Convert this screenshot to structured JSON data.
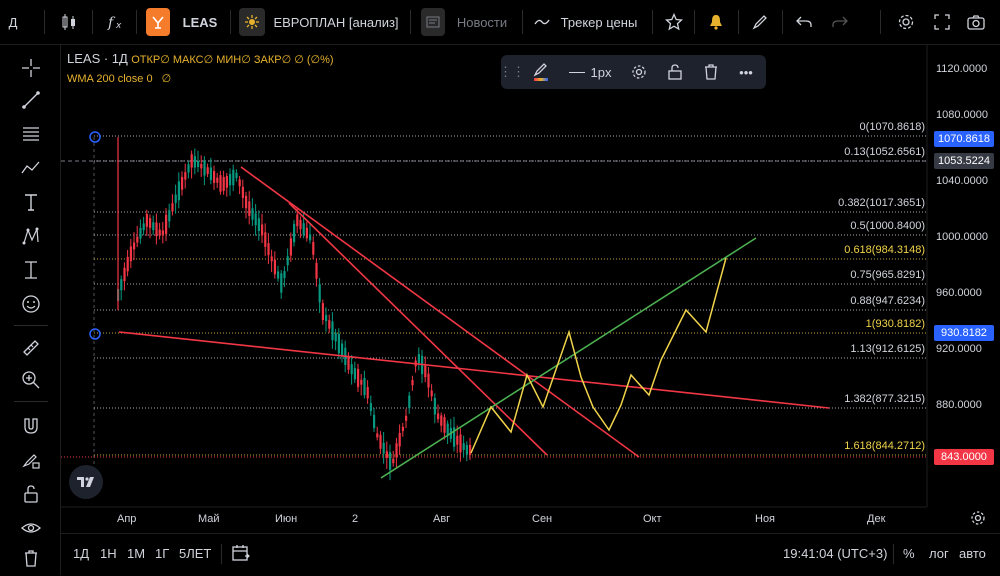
{
  "toolbar": {
    "interval_label": "Д",
    "symbol": "LEAS",
    "compare_label": "ЕВРОПЛАН [анализ]",
    "news_label": "Новости",
    "tracker_label": "Трекер цены"
  },
  "legend": {
    "title": "LEAS · 1Д",
    "ohlc": "ОТКР∅ МАКС∅ МИН∅ ЗАКР∅ ∅ (∅%)",
    "indicator": "WMA 200 close 0",
    "indicator_value": "∅"
  },
  "float_toolbar": {
    "width_label": "1px"
  },
  "price_axis": {
    "ticks": [
      {
        "label": "1120.0000",
        "y": 24
      },
      {
        "label": "1080.0000",
        "y": 70
      },
      {
        "label": "1040.0000",
        "y": 136
      },
      {
        "label": "1000.0000",
        "y": 192
      },
      {
        "label": "960.0000",
        "y": 248
      },
      {
        "label": "920.0000",
        "y": 304
      },
      {
        "label": "880.0000",
        "y": 360
      }
    ],
    "tags": [
      {
        "label": "1070.8618",
        "y": 94,
        "color": "#2962ff"
      },
      {
        "label": "1053.5224",
        "y": 116,
        "color": "#363a45"
      },
      {
        "label": "930.8182",
        "y": 288,
        "color": "#2962ff"
      },
      {
        "label": "843.0000",
        "y": 412,
        "color": "#f23645"
      }
    ]
  },
  "fib_levels": [
    {
      "label": "0(1070.8618)",
      "y": 91,
      "color": "#d1d4dc"
    },
    {
      "label": "0.13(1052.6561)",
      "y": 116,
      "color": "#d1d4dc"
    },
    {
      "label": "0.382(1017.3651)",
      "y": 167,
      "color": "#d1d4dc"
    },
    {
      "label": "0.5(1000.8400)",
      "y": 190,
      "color": "#d1d4dc"
    },
    {
      "label": "0.618(984.3148)",
      "y": 214,
      "color": "#f0d34a"
    },
    {
      "label": "0.75(965.8291)",
      "y": 239,
      "color": "#d1d4dc"
    },
    {
      "label": "0.88(947.6234)",
      "y": 265,
      "color": "#d1d4dc"
    },
    {
      "label": "1(930.8182)",
      "y": 288,
      "color": "#f0d34a"
    },
    {
      "label": "1.13(912.6125)",
      "y": 313,
      "color": "#d1d4dc"
    },
    {
      "label": "1.382(877.3215)",
      "y": 363,
      "color": "#d1d4dc"
    },
    {
      "label": "1.618(844.2712)",
      "y": 410,
      "color": "#f0d34a"
    }
  ],
  "time_axis": [
    "Апр",
    "Май",
    "Июн",
    "2",
    "Авг",
    "Сен",
    "Окт",
    "Ноя",
    "Дек"
  ],
  "bottom": {
    "ranges": [
      "1Д",
      "1Н",
      "1М",
      "1Г",
      "5ЛЕТ"
    ],
    "clock": "19:41:04 (UTC+3)",
    "percent": "%",
    "log": "лог",
    "auto": "авто"
  },
  "colors": {
    "up": "#089981",
    "down": "#f23645",
    "trend": "#f23645",
    "channel": "#4caf50",
    "projection": "#f0d34a",
    "accent": "#2962ff"
  }
}
